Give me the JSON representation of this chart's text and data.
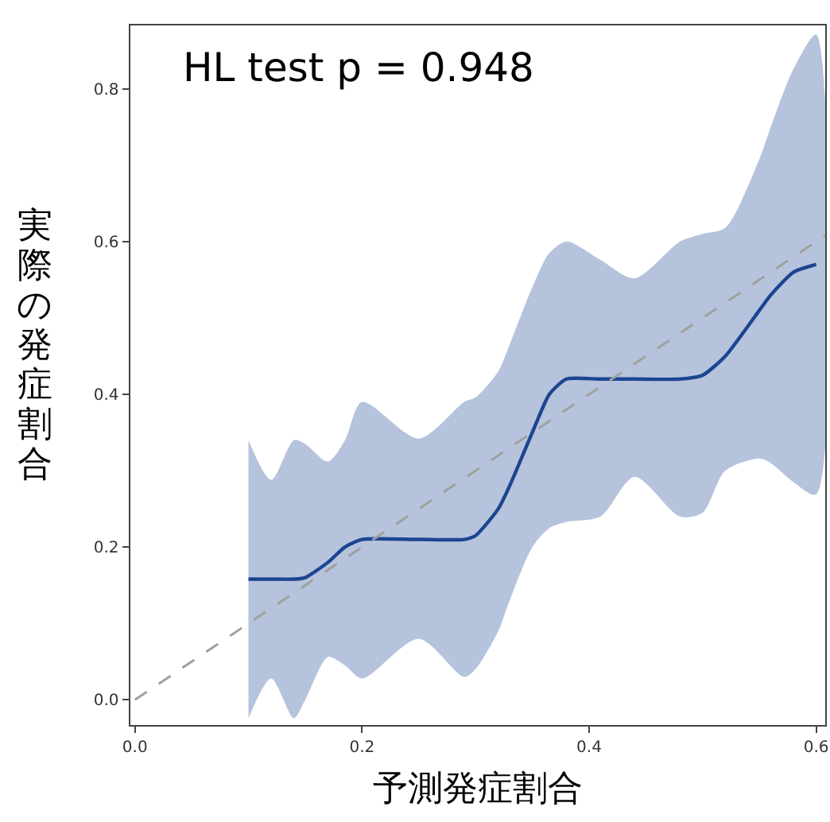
{
  "chart_data": {
    "type": "line",
    "xlabel": "予測発症割合",
    "ylabel": "実際の発症割合",
    "annotations": [
      "HL test p = 0.948"
    ],
    "xlim": [
      -0.004,
      0.608
    ],
    "ylim": [
      -0.033,
      0.883
    ],
    "xticks": [
      {
        "value": 0,
        "label": "0.0"
      },
      {
        "value": 0.2,
        "label": "0.2"
      },
      {
        "value": 0.4,
        "label": "0.4"
      },
      {
        "value": 0.6,
        "label": "0.6"
      }
    ],
    "yticks": [
      {
        "value": 0,
        "label": "0.0"
      },
      {
        "value": 0.2,
        "label": "0.2"
      },
      {
        "value": 0.4,
        "label": "0.4"
      },
      {
        "value": 0.6,
        "label": "0.6"
      },
      {
        "value": 0.8,
        "label": "0.8"
      }
    ],
    "grid": false,
    "marker": "none",
    "series": [
      {
        "color": "#1c4591",
        "line_style": "solid",
        "x": [
          0.1,
          0.12,
          0.14,
          0.15,
          0.17,
          0.185,
          0.2,
          0.25,
          0.29,
          0.3,
          0.32,
          0.33,
          0.35,
          0.365,
          0.38,
          0.41,
          0.44,
          0.48,
          0.5,
          0.52,
          0.55,
          0.56,
          0.58,
          0.6
        ],
        "values": [
          0.158,
          0.158,
          0.158,
          0.16,
          0.18,
          0.2,
          0.21,
          0.21,
          0.21,
          0.215,
          0.25,
          0.28,
          0.35,
          0.4,
          0.42,
          0.42,
          0.42,
          0.42,
          0.425,
          0.45,
          0.51,
          0.53,
          0.56,
          0.57
        ],
        "upper": [
          0.34,
          0.288,
          0.34,
          0.335,
          0.312,
          0.34,
          0.39,
          0.342,
          0.39,
          0.396,
          0.43,
          0.465,
          0.54,
          0.585,
          0.6,
          0.576,
          0.552,
          0.6,
          0.61,
          0.618,
          0.708,
          0.75,
          0.826,
          0.871
        ],
        "lower": [
          -0.024,
          0.028,
          -0.024,
          0.0,
          0.056,
          0.045,
          0.028,
          0.08,
          0.03,
          0.04,
          0.09,
          0.13,
          0.2,
          0.225,
          0.233,
          0.24,
          0.292,
          0.24,
          0.245,
          0.3,
          0.316,
          0.31,
          0.285,
          0.269
        ]
      },
      {
        "color": "#a0a0a0",
        "line_style": "dashed",
        "x": [
          0,
          0.608
        ],
        "values": [
          0,
          0.608
        ]
      }
    ]
  }
}
